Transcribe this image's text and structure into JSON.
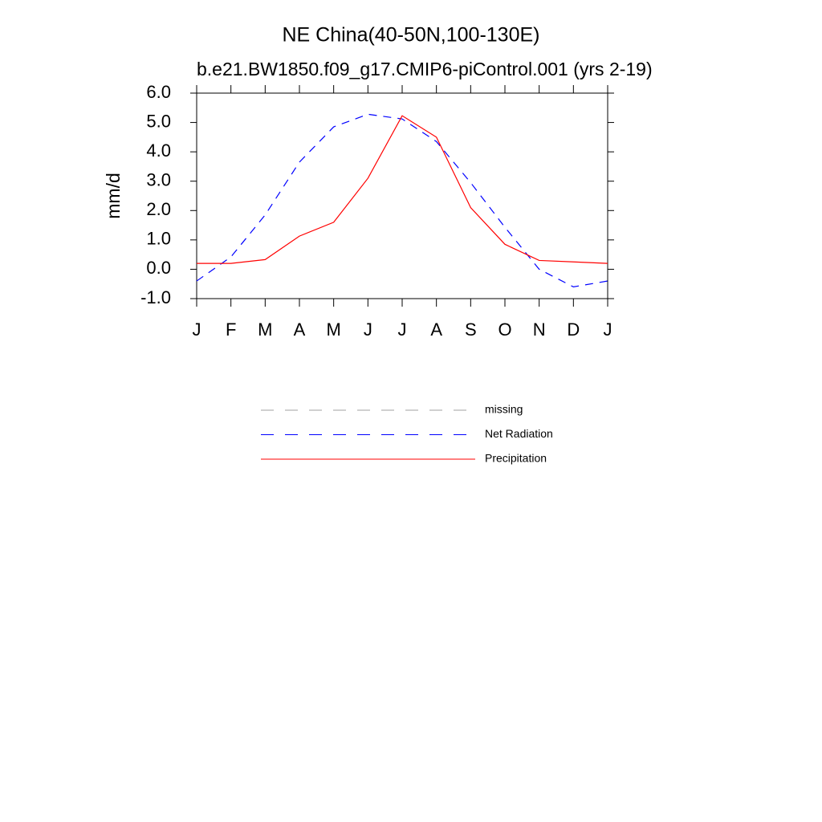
{
  "chart_data": {
    "type": "line",
    "title": "NE China(40-50N,100-130E)",
    "subtitle": "b.e21.BW1850.f09_g17.CMIP6-piControl.001 (yrs 2-19)",
    "y_label": "mm/d",
    "categories": [
      "J",
      "F",
      "M",
      "A",
      "M",
      "J",
      "J",
      "A",
      "S",
      "O",
      "N",
      "D",
      "J"
    ],
    "ylim": [
      -1,
      6
    ],
    "yticks": [
      {
        "value": -1,
        "label": "-1.0"
      },
      {
        "value": 0,
        "label": "0.0"
      },
      {
        "value": 1,
        "label": "1.0"
      },
      {
        "value": 2,
        "label": "2.0"
      },
      {
        "value": 3,
        "label": "3.0"
      },
      {
        "value": 4,
        "label": "4.0"
      },
      {
        "value": 5,
        "label": "5.0"
      },
      {
        "value": 6,
        "label": "6.0"
      }
    ],
    "legend_extra": [
      {
        "name": "missing",
        "color": "#a0a0a0",
        "dashed": true
      }
    ],
    "series": [
      {
        "name": "Net Radiation",
        "color": "#0000ff",
        "dashed": true,
        "values": [
          -0.4,
          0.42,
          1.85,
          3.65,
          4.85,
          5.28,
          5.12,
          4.35,
          2.95,
          1.43,
          0.0,
          -0.6,
          -0.4
        ]
      },
      {
        "name": "Precipitation",
        "color": "#ff0000",
        "dashed": false,
        "values": [
          0.2,
          0.2,
          0.33,
          1.13,
          1.6,
          3.1,
          5.23,
          4.5,
          2.1,
          0.85,
          0.3,
          0.25,
          0.2
        ]
      }
    ]
  }
}
